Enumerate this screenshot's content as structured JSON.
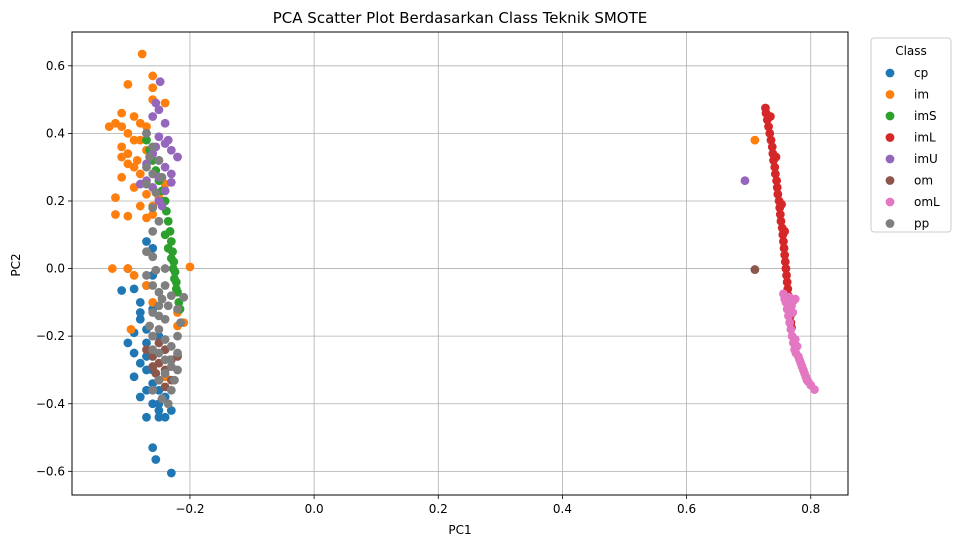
{
  "chart_data": {
    "type": "scatter",
    "title": "PCA Scatter Plot Berdasarkan Class Teknik SMOTE",
    "xlabel": "PC1",
    "ylabel": "PC2",
    "xlim": [
      -0.39,
      0.86
    ],
    "ylim": [
      -0.67,
      0.7
    ],
    "xticks": [
      -0.2,
      0.0,
      0.2,
      0.4,
      0.6,
      0.8
    ],
    "xtick_labels": [
      "−0.2",
      "0.0",
      "0.2",
      "0.4",
      "0.6",
      "0.8"
    ],
    "yticks": [
      -0.6,
      -0.4,
      -0.2,
      0.0,
      0.2,
      0.4,
      0.6
    ],
    "ytick_labels": [
      "−0.6",
      "−0.4",
      "−0.2",
      "0.0",
      "0.2",
      "0.4",
      "0.6"
    ],
    "grid": true,
    "legend": {
      "title": "Class",
      "placement": "outside-right"
    },
    "series": [
      {
        "name": "cp",
        "color": "#1f77b4",
        "points": [
          [
            -0.3,
            0.0
          ],
          [
            -0.29,
            -0.06
          ],
          [
            -0.28,
            -0.1
          ],
          [
            -0.3,
            -0.22
          ],
          [
            -0.29,
            -0.25
          ],
          [
            -0.28,
            -0.28
          ],
          [
            -0.29,
            -0.32
          ],
          [
            -0.27,
            -0.3
          ],
          [
            -0.27,
            -0.36
          ],
          [
            -0.26,
            -0.4
          ],
          [
            -0.27,
            -0.44
          ],
          [
            -0.25,
            -0.42
          ],
          [
            -0.25,
            -0.44
          ],
          [
            -0.24,
            -0.38
          ],
          [
            -0.26,
            -0.53
          ],
          [
            -0.255,
            -0.565
          ],
          [
            -0.23,
            -0.605
          ],
          [
            -0.27,
            0.08
          ],
          [
            -0.26,
            0.06
          ],
          [
            -0.26,
            -0.02
          ],
          [
            -0.27,
            -0.05
          ],
          [
            -0.28,
            -0.15
          ],
          [
            -0.27,
            -0.18
          ],
          [
            -0.26,
            -0.34
          ],
          [
            -0.24,
            -0.32
          ],
          [
            -0.25,
            -0.36
          ],
          [
            -0.28,
            -0.38
          ],
          [
            -0.26,
            -0.3
          ],
          [
            -0.27,
            -0.22
          ],
          [
            -0.25,
            -0.4
          ],
          [
            -0.24,
            -0.44
          ],
          [
            -0.23,
            -0.42
          ],
          [
            -0.28,
            -0.13
          ],
          [
            -0.27,
            -0.26
          ],
          [
            -0.29,
            -0.19
          ],
          [
            -0.31,
            -0.065
          ],
          [
            -0.25,
            -0.2
          ],
          [
            -0.26,
            -0.12
          ]
        ]
      },
      {
        "name": "im",
        "color": "#ff7f0e",
        "points": [
          [
            -0.277,
            0.635
          ],
          [
            -0.3,
            0.545
          ],
          [
            -0.26,
            0.57
          ],
          [
            -0.26,
            0.535
          ],
          [
            -0.26,
            0.5
          ],
          [
            -0.24,
            0.49
          ],
          [
            -0.32,
            0.43
          ],
          [
            -0.31,
            0.46
          ],
          [
            -0.3,
            0.4
          ],
          [
            -0.29,
            0.45
          ],
          [
            -0.28,
            0.43
          ],
          [
            -0.27,
            0.42
          ],
          [
            -0.3,
            0.34
          ],
          [
            -0.31,
            0.36
          ],
          [
            -0.29,
            0.3
          ],
          [
            -0.31,
            0.27
          ],
          [
            -0.3,
            0.31
          ],
          [
            -0.28,
            0.28
          ],
          [
            -0.29,
            0.24
          ],
          [
            -0.32,
            0.21
          ],
          [
            -0.32,
            0.16
          ],
          [
            -0.3,
            0.155
          ],
          [
            -0.28,
            0.185
          ],
          [
            -0.27,
            0.22
          ],
          [
            -0.26,
            0.185
          ],
          [
            -0.27,
            0.15
          ],
          [
            -0.31,
            0.42
          ],
          [
            -0.29,
            0.38
          ],
          [
            -0.27,
            0.35
          ],
          [
            -0.325,
            0.0
          ],
          [
            -0.3,
            0.0
          ],
          [
            -0.29,
            -0.02
          ],
          [
            -0.295,
            -0.18
          ],
          [
            -0.2,
            0.005
          ],
          [
            0.71,
            0.38
          ],
          [
            -0.28,
            0.38
          ],
          [
            -0.26,
            0.32
          ],
          [
            -0.25,
            0.27
          ],
          [
            -0.24,
            0.25
          ],
          [
            -0.22,
            -0.17
          ],
          [
            -0.21,
            -0.16
          ],
          [
            -0.22,
            -0.13
          ],
          [
            -0.24,
            -0.32
          ],
          [
            -0.26,
            -0.1
          ],
          [
            -0.27,
            -0.05
          ],
          [
            -0.26,
            0.16
          ],
          [
            -0.25,
            0.21
          ],
          [
            -0.33,
            0.42
          ],
          [
            -0.31,
            0.33
          ],
          [
            -0.285,
            0.32
          ]
        ]
      },
      {
        "name": "imS",
        "color": "#2ca02c",
        "points": [
          [
            -0.27,
            0.38
          ],
          [
            -0.265,
            0.35
          ],
          [
            -0.26,
            0.32
          ],
          [
            -0.255,
            0.29
          ],
          [
            -0.25,
            0.26
          ],
          [
            -0.245,
            0.23
          ],
          [
            -0.24,
            0.2
          ],
          [
            -0.238,
            0.17
          ],
          [
            -0.235,
            0.14
          ],
          [
            -0.232,
            0.11
          ],
          [
            -0.23,
            0.08
          ],
          [
            -0.228,
            0.05
          ],
          [
            -0.226,
            0.02
          ],
          [
            -0.224,
            -0.01
          ],
          [
            -0.222,
            -0.04
          ],
          [
            -0.22,
            -0.07
          ],
          [
            -0.218,
            -0.1
          ],
          [
            -0.216,
            -0.12
          ],
          [
            -0.24,
            0.1
          ],
          [
            -0.235,
            0.06
          ],
          [
            -0.23,
            0.03
          ],
          [
            -0.227,
            0.0
          ],
          [
            -0.225,
            -0.03
          ],
          [
            -0.222,
            -0.06
          ]
        ]
      },
      {
        "name": "imL",
        "color": "#d62728",
        "points": [
          [
            0.727,
            0.475
          ],
          [
            0.728,
            0.46
          ],
          [
            0.73,
            0.44
          ],
          [
            0.732,
            0.42
          ],
          [
            0.734,
            0.4
          ],
          [
            0.736,
            0.38
          ],
          [
            0.738,
            0.36
          ],
          [
            0.739,
            0.34
          ],
          [
            0.74,
            0.32
          ],
          [
            0.742,
            0.3
          ],
          [
            0.743,
            0.28
          ],
          [
            0.745,
            0.26
          ],
          [
            0.746,
            0.24
          ],
          [
            0.747,
            0.22
          ],
          [
            0.749,
            0.2
          ],
          [
            0.75,
            0.18
          ],
          [
            0.751,
            0.16
          ],
          [
            0.752,
            0.14
          ],
          [
            0.754,
            0.12
          ],
          [
            0.755,
            0.1
          ],
          [
            0.756,
            0.08
          ],
          [
            0.757,
            0.06
          ],
          [
            0.758,
            0.04
          ],
          [
            0.759,
            0.02
          ],
          [
            0.76,
            0.0
          ],
          [
            0.761,
            -0.02
          ],
          [
            0.762,
            -0.04
          ],
          [
            0.763,
            -0.06
          ],
          [
            0.764,
            -0.08
          ],
          [
            0.765,
            -0.1
          ],
          [
            0.766,
            -0.12
          ],
          [
            0.767,
            -0.14
          ],
          [
            0.768,
            -0.16
          ],
          [
            0.769,
            -0.175
          ],
          [
            0.735,
            0.45
          ],
          [
            0.744,
            0.33
          ],
          [
            0.753,
            0.19
          ],
          [
            0.758,
            0.11
          ]
        ]
      },
      {
        "name": "imU",
        "color": "#9467bd",
        "points": [
          [
            -0.248,
            0.553
          ],
          [
            -0.255,
            0.49
          ],
          [
            -0.25,
            0.47
          ],
          [
            -0.26,
            0.45
          ],
          [
            -0.24,
            0.43
          ],
          [
            -0.27,
            0.4
          ],
          [
            -0.25,
            0.39
          ],
          [
            -0.24,
            0.37
          ],
          [
            -0.23,
            0.35
          ],
          [
            -0.26,
            0.34
          ],
          [
            -0.25,
            0.32
          ],
          [
            -0.27,
            0.31
          ],
          [
            -0.24,
            0.3
          ],
          [
            -0.22,
            0.33
          ],
          [
            -0.23,
            0.28
          ],
          [
            -0.25,
            0.27
          ],
          [
            -0.27,
            0.26
          ],
          [
            -0.26,
            0.24
          ],
          [
            -0.24,
            0.23
          ],
          [
            -0.25,
            0.2
          ],
          [
            -0.245,
            0.185
          ],
          [
            -0.28,
            0.25
          ],
          [
            -0.23,
            0.255
          ],
          [
            -0.255,
            0.36
          ],
          [
            -0.235,
            0.38
          ],
          [
            0.694,
            0.26
          ]
        ]
      },
      {
        "name": "om",
        "color": "#8c564b",
        "points": [
          [
            -0.26,
            -0.2
          ],
          [
            -0.25,
            -0.22
          ],
          [
            -0.24,
            -0.24
          ],
          [
            -0.26,
            -0.26
          ],
          [
            -0.25,
            -0.28
          ],
          [
            -0.23,
            -0.27
          ],
          [
            -0.24,
            -0.3
          ],
          [
            -0.22,
            -0.26
          ],
          [
            -0.25,
            -0.33
          ],
          [
            -0.26,
            -0.29
          ],
          [
            -0.24,
            -0.35
          ],
          [
            -0.23,
            -0.33
          ],
          [
            -0.27,
            -0.24
          ],
          [
            -0.255,
            -0.31
          ],
          [
            0.71,
            -0.003
          ]
        ]
      },
      {
        "name": "omL",
        "color": "#e377c2",
        "points": [
          [
            0.756,
            -0.075
          ],
          [
            0.758,
            -0.09
          ],
          [
            0.76,
            -0.1
          ],
          [
            0.762,
            -0.12
          ],
          [
            0.764,
            -0.14
          ],
          [
            0.766,
            -0.16
          ],
          [
            0.768,
            -0.18
          ],
          [
            0.77,
            -0.2
          ],
          [
            0.772,
            -0.22
          ],
          [
            0.774,
            -0.24
          ],
          [
            0.776,
            -0.25
          ],
          [
            0.78,
            -0.26
          ],
          [
            0.784,
            -0.28
          ],
          [
            0.788,
            -0.3
          ],
          [
            0.792,
            -0.32
          ],
          [
            0.796,
            -0.335
          ],
          [
            0.8,
            -0.345
          ],
          [
            0.806,
            -0.358
          ],
          [
            0.765,
            -0.085
          ],
          [
            0.772,
            -0.095
          ],
          [
            0.775,
            -0.09
          ],
          [
            0.769,
            -0.11
          ],
          [
            0.771,
            -0.13
          ],
          [
            0.775,
            -0.21
          ],
          [
            0.778,
            -0.23
          ],
          [
            0.782,
            -0.27
          ],
          [
            0.786,
            -0.29
          ],
          [
            0.79,
            -0.31
          ],
          [
            0.794,
            -0.33
          ]
        ]
      },
      {
        "name": "pp",
        "color": "#7f7f7f",
        "points": [
          [
            -0.27,
            0.4
          ],
          [
            -0.26,
            0.36
          ],
          [
            -0.265,
            0.33
          ],
          [
            -0.27,
            0.3
          ],
          [
            -0.26,
            0.28
          ],
          [
            -0.27,
            0.25
          ],
          [
            -0.255,
            0.225
          ],
          [
            -0.26,
            0.18
          ],
          [
            -0.25,
            0.14
          ],
          [
            -0.26,
            0.11
          ],
          [
            -0.27,
            0.05
          ],
          [
            -0.26,
            0.035
          ],
          [
            -0.255,
            -0.005
          ],
          [
            -0.27,
            -0.02
          ],
          [
            -0.26,
            -0.05
          ],
          [
            -0.25,
            -0.07
          ],
          [
            -0.24,
            -0.05
          ],
          [
            -0.23,
            -0.08
          ],
          [
            -0.21,
            -0.085
          ],
          [
            -0.22,
            -0.12
          ],
          [
            -0.25,
            -0.11
          ],
          [
            -0.26,
            -0.13
          ],
          [
            -0.24,
            -0.15
          ],
          [
            -0.25,
            -0.18
          ],
          [
            -0.26,
            -0.2
          ],
          [
            -0.24,
            -0.21
          ],
          [
            -0.23,
            -0.23
          ],
          [
            -0.25,
            -0.25
          ],
          [
            -0.24,
            -0.27
          ],
          [
            -0.22,
            -0.25
          ],
          [
            -0.23,
            -0.29
          ],
          [
            -0.24,
            -0.31
          ],
          [
            -0.22,
            -0.3
          ],
          [
            -0.225,
            -0.33
          ],
          [
            -0.23,
            -0.36
          ],
          [
            -0.245,
            -0.385
          ],
          [
            -0.235,
            -0.4
          ],
          [
            -0.24,
            0.0
          ],
          [
            -0.245,
            -0.09
          ],
          [
            -0.215,
            -0.16
          ],
          [
            -0.22,
            -0.2
          ],
          [
            -0.26,
            -0.24
          ],
          [
            -0.25,
            -0.33
          ],
          [
            -0.26,
            -0.36
          ],
          [
            -0.25,
            0.32
          ],
          [
            -0.245,
            0.27
          ],
          [
            -0.25,
            -0.14
          ],
          [
            -0.235,
            -0.11
          ],
          [
            -0.265,
            -0.17
          ],
          [
            -0.232,
            -0.27
          ]
        ]
      }
    ]
  }
}
